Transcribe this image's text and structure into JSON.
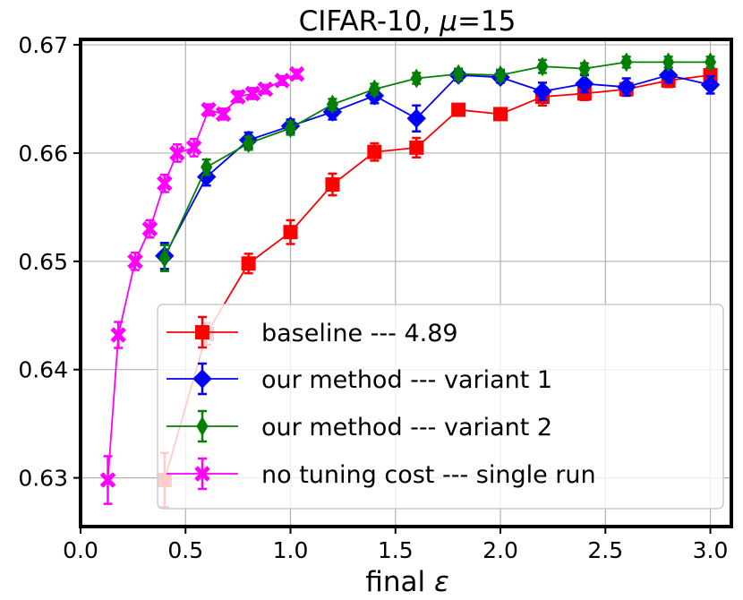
{
  "chart_data": {
    "type": "line",
    "title": "CIFAR-10, μ=15",
    "title_main": "CIFAR-10, ",
    "title_mu": "μ",
    "title_eq": "=15",
    "xlabel": "final ε",
    "xlabel_main": "final ",
    "xlabel_eps": "ε",
    "ylabel": "",
    "xlim": [
      0.0,
      3.1
    ],
    "ylim": [
      0.6255,
      0.6705
    ],
    "xticks": [
      {
        "value": 0.0,
        "label": "0.0"
      },
      {
        "value": 0.5,
        "label": "0.5"
      },
      {
        "value": 1.0,
        "label": "1.0"
      },
      {
        "value": 1.5,
        "label": "1.5"
      },
      {
        "value": 2.0,
        "label": "2.0"
      },
      {
        "value": 2.5,
        "label": "2.5"
      },
      {
        "value": 3.0,
        "label": "3.0"
      }
    ],
    "yticks": [
      {
        "value": 0.63,
        "label": "0.63"
      },
      {
        "value": 0.64,
        "label": "0.64"
      },
      {
        "value": 0.65,
        "label": "0.65"
      },
      {
        "value": 0.66,
        "label": "0.66"
      },
      {
        "value": 0.67,
        "label": "0.67"
      }
    ],
    "grid": true,
    "legend_position": "lower-right",
    "series": [
      {
        "name": "baseline --- 4.89",
        "color": "#ff0000",
        "marker": "square",
        "x": [
          0.4,
          0.6,
          0.8,
          1.0,
          1.2,
          1.4,
          1.6,
          1.8,
          2.0,
          2.2,
          2.4,
          2.6,
          2.8,
          3.0
        ],
        "y": [
          0.6298,
          0.6433,
          0.6498,
          0.6527,
          0.6571,
          0.6601,
          0.6605,
          0.664,
          0.6636,
          0.6652,
          0.6655,
          0.6659,
          0.6667,
          0.6672
        ],
        "err": [
          0.0025,
          0.001,
          0.0009,
          0.0011,
          0.001,
          0.0008,
          0.0009,
          0.0005,
          0.0005,
          0.0008,
          0.0006,
          0.0006,
          0.0006,
          0.0006
        ]
      },
      {
        "name": "our method --- variant 1",
        "color": "#0000ff",
        "marker": "diamond",
        "x": [
          0.4,
          0.6,
          0.8,
          1.0,
          1.2,
          1.4,
          1.6,
          1.8,
          2.0,
          2.2,
          2.4,
          2.6,
          2.8,
          3.0
        ],
        "y": [
          0.6505,
          0.6578,
          0.6612,
          0.6625,
          0.6638,
          0.6653,
          0.6632,
          0.6672,
          0.667,
          0.6657,
          0.6664,
          0.6661,
          0.6672,
          0.6663
        ],
        "err": [
          0.0012,
          0.0008,
          0.0007,
          0.0006,
          0.0007,
          0.0007,
          0.0012,
          0.0005,
          0.0005,
          0.0008,
          0.0008,
          0.0008,
          0.0007,
          0.0008
        ]
      },
      {
        "name": "our method --- variant 2",
        "color": "#008000",
        "marker": "thin_diamond",
        "x": [
          0.4,
          0.6,
          0.8,
          1.0,
          1.2,
          1.4,
          1.6,
          1.8,
          2.0,
          2.2,
          2.4,
          2.6,
          2.8,
          3.0
        ],
        "y": [
          0.6503,
          0.6587,
          0.6609,
          0.6623,
          0.6645,
          0.6659,
          0.6669,
          0.6673,
          0.6672,
          0.668,
          0.6678,
          0.6684,
          0.6684,
          0.6684
        ],
        "err": [
          0.0012,
          0.0007,
          0.0006,
          0.0006,
          0.0005,
          0.0005,
          0.0005,
          0.0005,
          0.0005,
          0.0006,
          0.0005,
          0.0005,
          0.0005,
          0.0005
        ]
      },
      {
        "name": "no tuning cost --- single run",
        "color": "#ff00ff",
        "marker": "x",
        "x": [
          0.13,
          0.18,
          0.26,
          0.33,
          0.4,
          0.46,
          0.54,
          0.61,
          0.68,
          0.75,
          0.82,
          0.88,
          0.96,
          1.03
        ],
        "y": [
          0.6298,
          0.6432,
          0.65,
          0.653,
          0.6572,
          0.66,
          0.6605,
          0.664,
          0.6636,
          0.6652,
          0.6655,
          0.6659,
          0.6667,
          0.6673
        ],
        "err": [
          0.0022,
          0.0012,
          0.0008,
          0.0008,
          0.0008,
          0.0008,
          0.0008,
          0.0005,
          0.0005,
          0.0005,
          0.0005,
          0.0004,
          0.0004,
          0.0004
        ]
      }
    ]
  }
}
